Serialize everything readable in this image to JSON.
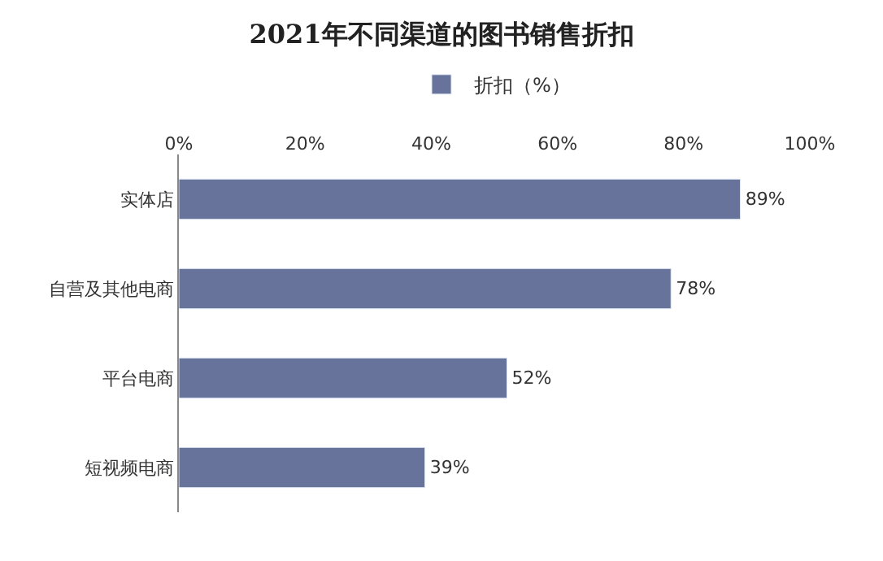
{
  "chart_data": {
    "type": "bar",
    "orientation": "horizontal",
    "title": "2021年不同渠道的图书销售折扣",
    "categories": [
      "实体店",
      "自营及其他电商",
      "平台电商",
      "短视频电商"
    ],
    "series": [
      {
        "name": "折扣（%）",
        "color": "#67739a",
        "values": [
          89,
          78,
          52,
          39
        ],
        "value_labels": [
          "89%",
          "78%",
          "52%",
          "39%"
        ]
      }
    ],
    "xlim": [
      0,
      100
    ],
    "xticks": [
      {
        "value": 0,
        "label": "0%"
      },
      {
        "value": 20,
        "label": "20%"
      },
      {
        "value": 40,
        "label": "40%"
      },
      {
        "value": 60,
        "label": "60%"
      },
      {
        "value": 80,
        "label": "80%"
      },
      {
        "value": 100,
        "label": "100%"
      }
    ],
    "legend": "top"
  }
}
